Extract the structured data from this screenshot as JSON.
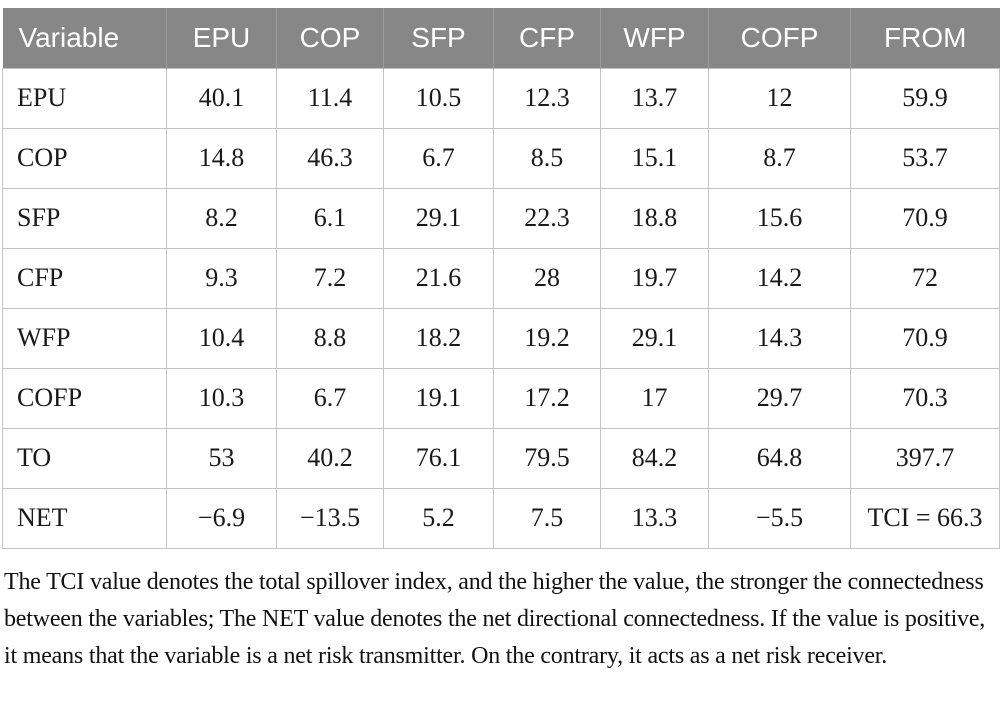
{
  "colors": {
    "header_bg": "#878787",
    "header_text": "#ffffff",
    "header_divider": "#9b9b9b",
    "grid_line": "#c4c4c4",
    "body_text": "#1a1a1a"
  },
  "table": {
    "columns": [
      "Variable",
      "EPU",
      "COP",
      "SFP",
      "CFP",
      "WFP",
      "COFP",
      "FROM"
    ],
    "rows": [
      {
        "label": "EPU",
        "values": [
          "40.1",
          "11.4",
          "10.5",
          "12.3",
          "13.7",
          "12",
          "59.9"
        ]
      },
      {
        "label": "COP",
        "values": [
          "14.8",
          "46.3",
          "6.7",
          "8.5",
          "15.1",
          "8.7",
          "53.7"
        ]
      },
      {
        "label": "SFP",
        "values": [
          "8.2",
          "6.1",
          "29.1",
          "22.3",
          "18.8",
          "15.6",
          "70.9"
        ]
      },
      {
        "label": "CFP",
        "values": [
          "9.3",
          "7.2",
          "21.6",
          "28",
          "19.7",
          "14.2",
          "72"
        ]
      },
      {
        "label": "WFP",
        "values": [
          "10.4",
          "8.8",
          "18.2",
          "19.2",
          "29.1",
          "14.3",
          "70.9"
        ]
      },
      {
        "label": "COFP",
        "values": [
          "10.3",
          "6.7",
          "19.1",
          "17.2",
          "17",
          "29.7",
          "70.3"
        ]
      },
      {
        "label": "TO",
        "values": [
          "53",
          "40.2",
          "76.1",
          "79.5",
          "84.2",
          "64.8",
          "397.7"
        ]
      },
      {
        "label": "NET",
        "values": [
          "−6.9",
          "−13.5",
          "5.2",
          "7.5",
          "13.3",
          "−5.5",
          "TCI = 66.3"
        ]
      }
    ]
  },
  "footnote": "The TCI value denotes the total spillover index, and the higher the value, the stronger the connectedness between the variables; The NET value denotes the net directional connectedness. If the value is positive, it means that the variable is a net risk transmitter. On the contrary, it acts as a net risk receiver."
}
